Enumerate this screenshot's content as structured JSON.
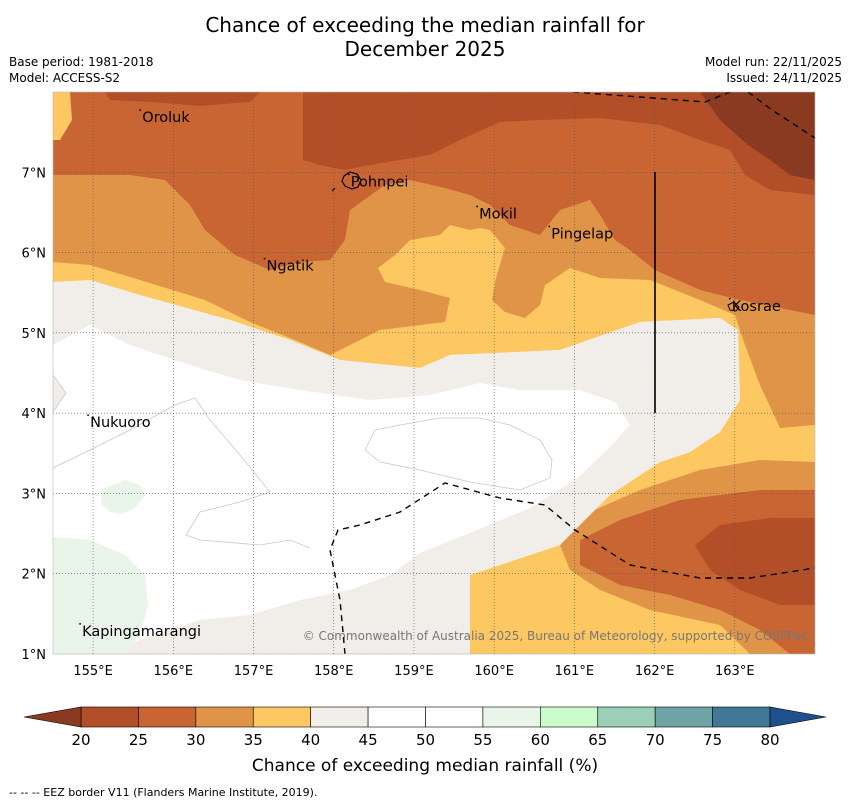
{
  "title_line1": "Chance of exceeding the median rainfall for",
  "title_line2": "December 2025",
  "base_period": "Base period: 1981-2018",
  "model": "Model: ACCESS-S2",
  "model_run": "Model run: 22/11/2025",
  "issued": "Issued: 24/11/2025",
  "copyright": "© Commonwealth of Australia 2025, Bureau of Meteorology, supported by COSPPac",
  "colorbar_label": "Chance of exceeding median rainfall (%)",
  "footnote": "--  --  -- EEZ border V11 (Flanders Marine Institute, 2019).",
  "map": {
    "lon_range": [
      154.5,
      164.0
    ],
    "lat_range": [
      1.0,
      8.0
    ],
    "lon_ticks": [
      155,
      156,
      157,
      158,
      159,
      160,
      161,
      162,
      163
    ],
    "lon_tick_labels": [
      "155°E",
      "156°E",
      "157°E",
      "158°E",
      "159°E",
      "160°E",
      "161°E",
      "162°E",
      "163°E"
    ],
    "lat_ticks": [
      1,
      2,
      3,
      4,
      5,
      6,
      7
    ],
    "lat_tick_labels": [
      "1°N",
      "2°N",
      "3°N",
      "4°N",
      "5°N",
      "6°N",
      "7°N"
    ],
    "places": [
      {
        "name": "Oroluk",
        "lon": 155.6,
        "lat": 7.65
      },
      {
        "name": "Pohnpei",
        "lon": 158.2,
        "lat": 6.85
      },
      {
        "name": "Mokil",
        "lon": 159.8,
        "lat": 6.45
      },
      {
        "name": "Pingelap",
        "lon": 160.7,
        "lat": 6.2
      },
      {
        "name": "Ngatik",
        "lon": 157.15,
        "lat": 5.8
      },
      {
        "name": "Kosrae",
        "lon": 162.95,
        "lat": 5.3
      },
      {
        "name": "Nukuoro",
        "lon": 154.95,
        "lat": 3.85
      },
      {
        "name": "Kapingamarangi",
        "lon": 154.85,
        "lat": 1.25
      }
    ]
  },
  "colorbar": {
    "ticks": [
      "20",
      "25",
      "30",
      "35",
      "40",
      "45",
      "50",
      "55",
      "60",
      "65",
      "70",
      "75",
      "80"
    ],
    "colors": {
      "under": "#8a3a20",
      "c20_25": "#b34f28",
      "c25_30": "#c96532",
      "c30_35": "#e09448",
      "c35_40": "#fdc862",
      "c40_45": "#f1ede9",
      "c45_50": "#ffffff",
      "c50_55": "#ffffff",
      "c55_60": "#e9f5e8",
      "c60_65": "#cdfccc",
      "c65_70": "#9ccfb7",
      "c70_75": "#6ea4a5",
      "c75_80": "#417896",
      "over": "#1f4f8c"
    }
  }
}
